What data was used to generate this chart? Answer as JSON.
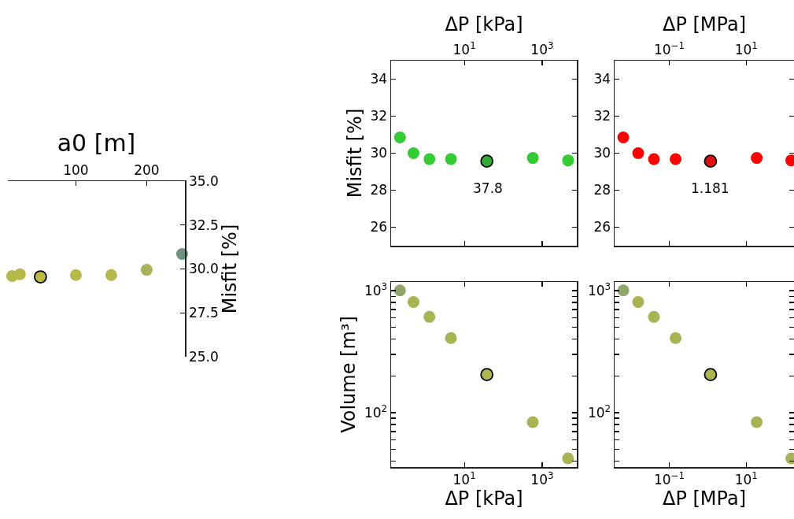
{
  "chart_data": [
    {
      "type": "scatter",
      "xlabel": "a0 [m]",
      "ylabel": "Misfit [%]",
      "xlim": [
        4,
        254
      ],
      "xticks": [
        100,
        200
      ],
      "ylim": [
        25,
        35
      ],
      "yticks": [
        {
          "value": 25,
          "label": "25.0"
        },
        {
          "value": 27.5,
          "label": "27.5"
        },
        {
          "value": 30,
          "label": "30.0"
        },
        {
          "value": 32.5,
          "label": "32.5"
        },
        {
          "value": 35,
          "label": "35.0"
        }
      ],
      "grid": false,
      "marker": "circle",
      "series": [
        {
          "x": [
            10,
            21,
            100,
            150,
            200,
            250
          ],
          "values": [
            29.6,
            29.7,
            29.65,
            29.65,
            29.95,
            30.85
          ],
          "colors": [
            "#b7b84a",
            "#b7b84a",
            "#b7b84a",
            "#b5b84c",
            "#a9b25a",
            "#6f9080"
          ]
        },
        {
          "x": [
            50
          ],
          "values": [
            29.55
          ],
          "color": "#bdba42"
        }
      ]
    },
    {
      "type": "scatter",
      "xlabel": "ΔP [kPa]",
      "ylabel": "Misfit [%]",
      "log": "x",
      "xlim": [
        0.13,
        7800
      ],
      "xticks": [
        {
          "value": 10,
          "label": "10$^{1}$"
        },
        {
          "value": 1000,
          "label": "10$^{3}$"
        }
      ],
      "ylim": [
        25,
        35
      ],
      "yticks": [
        26,
        28,
        30,
        32,
        34
      ],
      "grid": false,
      "marker": "circle",
      "annotations": [
        "37.8"
      ],
      "series": [
        {
          "x": [
            0.22,
            0.49,
            1.26,
            4.5,
            575,
            4650
          ],
          "values": [
            30.85,
            30.0,
            29.68,
            29.68,
            29.74,
            29.61
          ],
          "color": "#33cc33"
        },
        {
          "x": [
            37.8
          ],
          "values": [
            29.57
          ],
          "color": "#33aa33"
        }
      ]
    },
    {
      "type": "scatter",
      "xlabel": "ΔP [MPa]",
      "log": "x",
      "xlim": [
        0.0038,
        174
      ],
      "xticks": [
        {
          "value": 0.1,
          "label": "10$^{−1}$"
        },
        {
          "value": 10,
          "label": "10$^{1}$"
        }
      ],
      "ylim": [
        25,
        35
      ],
      "yticks": [
        26,
        28,
        30,
        32,
        34
      ],
      "grid": false,
      "marker": "circle",
      "annotations": [
        "1.181"
      ],
      "series": [
        {
          "x": [
            0.0064,
            0.0156,
            0.04,
            0.146,
            18.7,
            148
          ],
          "values": [
            30.85,
            30.0,
            29.68,
            29.68,
            29.74,
            29.61
          ],
          "color": "#ff0000"
        },
        {
          "x": [
            1.181
          ],
          "values": [
            29.57
          ],
          "color": "#dd1111"
        }
      ]
    },
    {
      "type": "scatter",
      "xlabel": "ΔP [kPa]",
      "ylabel": "Volume [m³]",
      "log": "xy",
      "xlim": [
        0.13,
        7800
      ],
      "xticks": [
        {
          "value": 10,
          "label": "10$^{1}$"
        },
        {
          "value": 1000,
          "label": "10$^{3}$"
        }
      ],
      "ylim": [
        35.8,
        1180
      ],
      "yticks": [
        {
          "value": 40,
          "label": null
        },
        {
          "value": 50,
          "label": null
        },
        {
          "value": 60,
          "label": null
        },
        {
          "value": 70,
          "label": null
        },
        {
          "value": 80,
          "label": null
        },
        {
          "value": 90,
          "label": null
        },
        {
          "value": 100,
          "label": "10$^{2}$"
        },
        {
          "value": 200,
          "label": null
        },
        {
          "value": 300,
          "label": null
        },
        {
          "value": 400,
          "label": null
        },
        {
          "value": 500,
          "label": null
        },
        {
          "value": 600,
          "label": null
        },
        {
          "value": 700,
          "label": null
        },
        {
          "value": 800,
          "label": null
        },
        {
          "value": 900,
          "label": null
        },
        {
          "value": 1000,
          "label": "10$^{3}$"
        }
      ],
      "grid": false,
      "marker": "circle",
      "series": [
        {
          "x": [
            0.22,
            0.49,
            1.26,
            4.5,
            575,
            4650
          ],
          "values": [
            1005,
            807,
            610,
            409,
            83.5,
            42.2
          ],
          "colors": [
            "#8fa66a",
            "#a8b454",
            "#a8b454",
            "#a8b454",
            "#a8b454",
            "#a8b454"
          ]
        },
        {
          "x": [
            37.8
          ],
          "values": [
            205
          ],
          "color": "#adb550"
        }
      ]
    },
    {
      "type": "scatter",
      "xlabel": "ΔP [MPa]",
      "log": "xy",
      "xlim": [
        0.0038,
        174
      ],
      "xticks": [
        {
          "value": 0.1,
          "label": "10$^{−1}$"
        },
        {
          "value": 10,
          "label": "10$^{1}$"
        }
      ],
      "ylim": [
        35.8,
        1180
      ],
      "yticks": [
        {
          "value": 40,
          "label": null
        },
        {
          "value": 50,
          "label": null
        },
        {
          "value": 60,
          "label": null
        },
        {
          "value": 70,
          "label": null
        },
        {
          "value": 80,
          "label": null
        },
        {
          "value": 90,
          "label": null
        },
        {
          "value": 100,
          "label": "10$^{2}$"
        },
        {
          "value": 200,
          "label": null
        },
        {
          "value": 300,
          "label": null
        },
        {
          "value": 400,
          "label": null
        },
        {
          "value": 500,
          "label": null
        },
        {
          "value": 600,
          "label": null
        },
        {
          "value": 700,
          "label": null
        },
        {
          "value": 800,
          "label": null
        },
        {
          "value": 900,
          "label": null
        },
        {
          "value": 1000,
          "label": "10$^{3}$"
        }
      ],
      "grid": false,
      "marker": "circle",
      "series": [
        {
          "x": [
            0.0064,
            0.0156,
            0.04,
            0.146,
            18.7,
            148
          ],
          "values": [
            1005,
            807,
            610,
            409,
            83.5,
            42.2
          ],
          "colors": [
            "#8fa66a",
            "#a8b454",
            "#a8b454",
            "#a8b454",
            "#a8b454",
            "#a8b454"
          ]
        },
        {
          "x": [
            1.181
          ],
          "values": [
            205
          ],
          "color": "#adb550"
        }
      ]
    }
  ]
}
